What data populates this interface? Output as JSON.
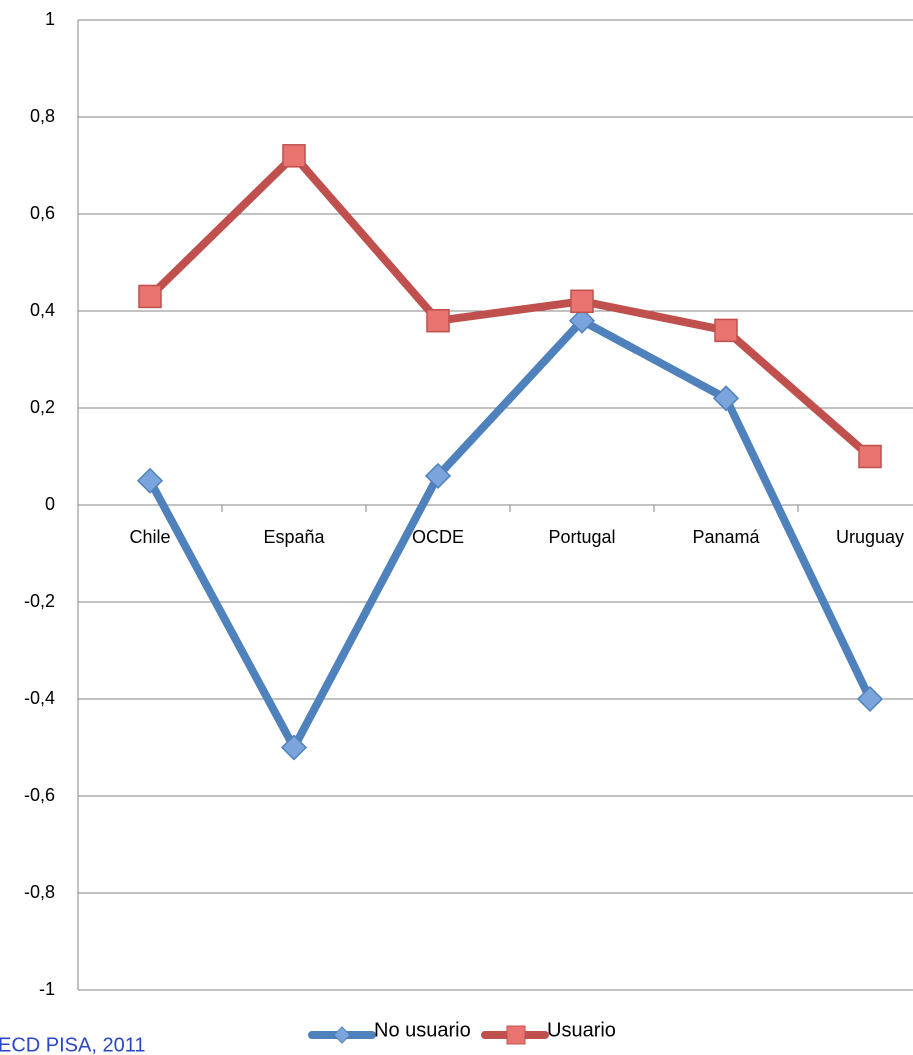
{
  "chart_data": {
    "type": "line",
    "categories": [
      "Chile",
      "España",
      "OCDE",
      "Portugal",
      "Panamá",
      "Uruguay"
    ],
    "series": [
      {
        "name": "No usuario",
        "color": "#4f81bd",
        "marker_fill": "#7ba3dc",
        "marker": "diamond",
        "values": [
          0.05,
          -0.5,
          0.06,
          0.38,
          0.22,
          -0.4
        ]
      },
      {
        "name": "Usuario",
        "color": "#c0504d",
        "marker_fill": "#e8736f",
        "marker": "square",
        "values": [
          0.43,
          0.72,
          0.38,
          0.42,
          0.36,
          0.1
        ]
      }
    ],
    "ylim": [
      -1,
      1
    ],
    "yticks": [
      -1,
      {
        "value": -0.8,
        "label": "-0,8"
      },
      {
        "value": -0.6,
        "label": "-0,6"
      },
      {
        "value": -0.4,
        "label": "-0,4"
      },
      {
        "value": -0.2,
        "label": "-0,2"
      },
      0,
      {
        "value": 0.2,
        "label": "0,2"
      },
      {
        "value": 0.4,
        "label": "0,4"
      },
      {
        "value": 0.6,
        "label": "0,6"
      },
      {
        "value": 0.8,
        "label": "0,8"
      },
      1
    ],
    "grid": true,
    "legend": "bottom",
    "source": "ECD PISA, 2011"
  }
}
